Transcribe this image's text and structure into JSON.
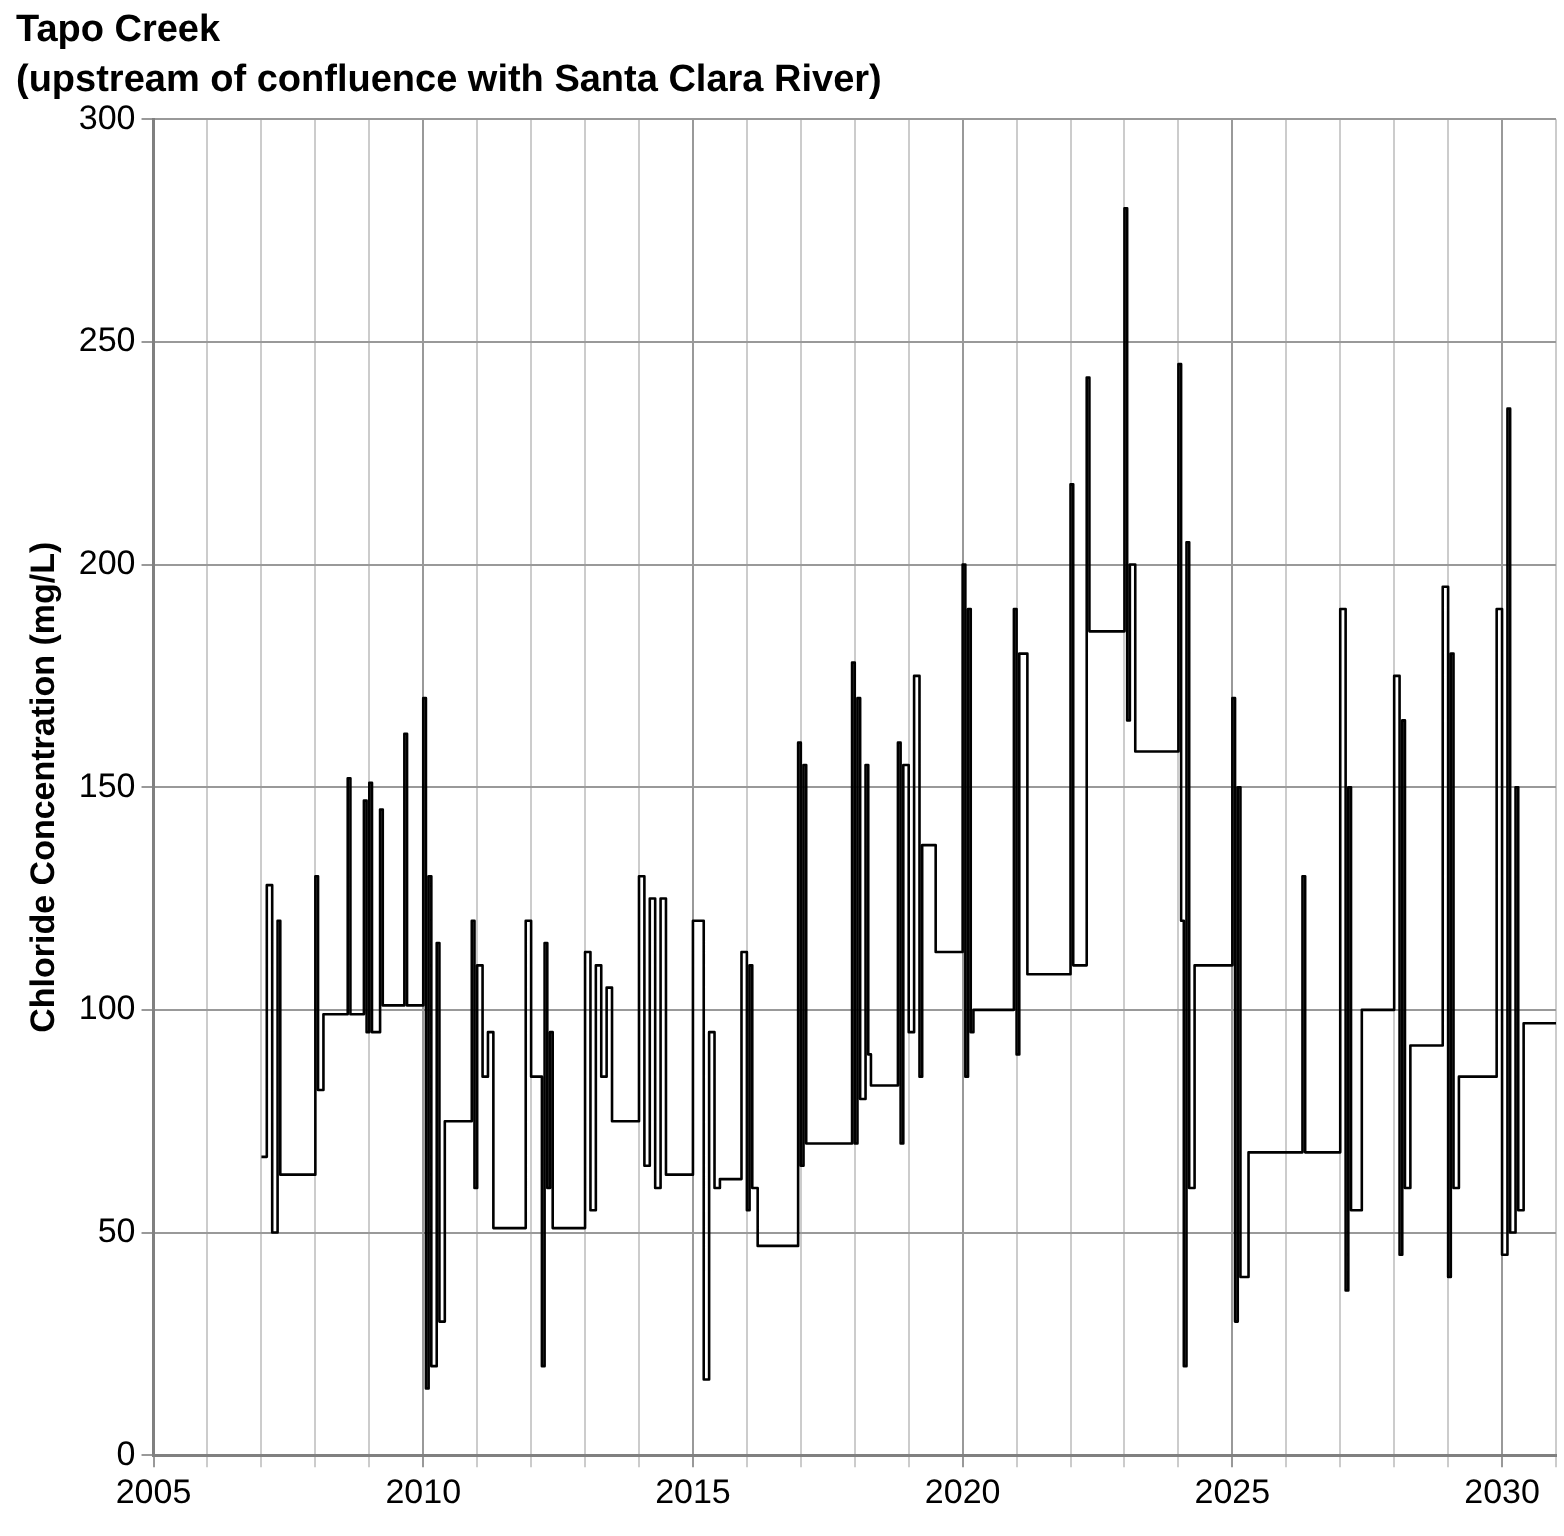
{
  "chart_data": {
    "type": "step",
    "title": "Tapo Creek",
    "subtitle": "(upstream of confluence with Santa Clara River)",
    "ylabel": "Chloride Concentration (mg/L)",
    "xlim": [
      2005,
      2031
    ],
    "ylim": [
      0,
      300
    ],
    "xticks": [
      2005,
      {
        "value": 2006,
        "label": null
      },
      {
        "value": 2007,
        "label": null
      },
      {
        "value": 2008,
        "label": null
      },
      {
        "value": 2009,
        "label": null
      },
      2010,
      {
        "value": 2011,
        "label": null
      },
      {
        "value": 2012,
        "label": null
      },
      {
        "value": 2013,
        "label": null
      },
      {
        "value": 2014,
        "label": null
      },
      2015,
      {
        "value": 2016,
        "label": null
      },
      {
        "value": 2017,
        "label": null
      },
      {
        "value": 2018,
        "label": null
      },
      {
        "value": 2019,
        "label": null
      },
      2020,
      {
        "value": 2021,
        "label": null
      },
      {
        "value": 2022,
        "label": null
      },
      {
        "value": 2023,
        "label": null
      },
      {
        "value": 2024,
        "label": null
      },
      2025,
      {
        "value": 2026,
        "label": null
      },
      {
        "value": 2027,
        "label": null
      },
      {
        "value": 2028,
        "label": null
      },
      {
        "value": 2029,
        "label": null
      },
      2030,
      {
        "value": 2031,
        "label": null
      }
    ],
    "yticks": [
      0,
      50,
      100,
      150,
      200,
      250,
      300
    ],
    "grid": true,
    "legend": false,
    "series": [
      {
        "color": "#000000",
        "x": [
          2007.0,
          2007.1,
          2007.2,
          2007.3,
          2007.35,
          2007.4,
          2008.0,
          2008.05,
          2008.15,
          2008.6,
          2008.65,
          2008.9,
          2008.95,
          2009.0,
          2009.05,
          2009.2,
          2009.25,
          2009.65,
          2009.7,
          2010.0,
          2010.05,
          2010.1,
          2010.15,
          2010.25,
          2010.3,
          2010.4,
          2010.9,
          2010.95,
          2011.0,
          2011.1,
          2011.2,
          2011.3,
          2011.9,
          2012.0,
          2012.2,
          2012.25,
          2012.3,
          2012.35,
          2012.4,
          2013.0,
          2013.1,
          2013.2,
          2013.3,
          2013.4,
          2013.5,
          2014.0,
          2014.1,
          2014.2,
          2014.3,
          2014.4,
          2014.5,
          2015.0,
          2015.2,
          2015.3,
          2015.4,
          2015.5,
          2015.9,
          2016.0,
          2016.05,
          2016.1,
          2016.2,
          2016.95,
          2017.0,
          2017.05,
          2017.1,
          2017.2,
          2017.95,
          2018.0,
          2018.05,
          2018.1,
          2018.2,
          2018.25,
          2018.3,
          2018.8,
          2018.85,
          2018.9,
          2019.0,
          2019.1,
          2019.2,
          2019.25,
          2019.5,
          2020.0,
          2020.05,
          2020.1,
          2020.15,
          2020.2,
          2020.95,
          2021.0,
          2021.05,
          2021.2,
          2022.0,
          2022.05,
          2022.3,
          2022.35,
          2023.0,
          2023.05,
          2023.1,
          2023.2,
          2024.0,
          2024.05,
          2024.1,
          2024.15,
          2024.2,
          2024.3,
          2025.0,
          2025.05,
          2025.1,
          2025.15,
          2025.3,
          2026.3,
          2026.35,
          2027.0,
          2027.1,
          2027.15,
          2027.2,
          2027.4,
          2028.0,
          2028.1,
          2028.15,
          2028.2,
          2028.3,
          2028.9,
          2029.0,
          2029.05,
          2029.1,
          2029.2,
          2029.9,
          2030.0,
          2030.1,
          2030.15,
          2030.25,
          2030.3,
          2030.4,
          2031.0
        ],
        "values": [
          67,
          128,
          50,
          120,
          63,
          63,
          130,
          82,
          99,
          152,
          99,
          147,
          95,
          151,
          95,
          145,
          101,
          162,
          101,
          170,
          15,
          130,
          20,
          115,
          30,
          75,
          120,
          60,
          110,
          85,
          95,
          51,
          120,
          85,
          20,
          115,
          60,
          95,
          51,
          113,
          55,
          110,
          85,
          105,
          75,
          130,
          65,
          125,
          60,
          125,
          63,
          120,
          17,
          95,
          60,
          62,
          113,
          55,
          110,
          60,
          47,
          160,
          65,
          155,
          70,
          70,
          178,
          70,
          170,
          80,
          155,
          90,
          83,
          160,
          70,
          155,
          95,
          175,
          85,
          137,
          113,
          200,
          85,
          190,
          95,
          100,
          190,
          90,
          180,
          108,
          218,
          110,
          242,
          185,
          280,
          165,
          200,
          158,
          245,
          120,
          20,
          205,
          60,
          110,
          170,
          30,
          150,
          40,
          68,
          130,
          68,
          190,
          37,
          150,
          55,
          100,
          175,
          45,
          165,
          60,
          92,
          195,
          40,
          180,
          60,
          85,
          190,
          45,
          235,
          50,
          150,
          55,
          97,
          97
        ]
      }
    ]
  }
}
